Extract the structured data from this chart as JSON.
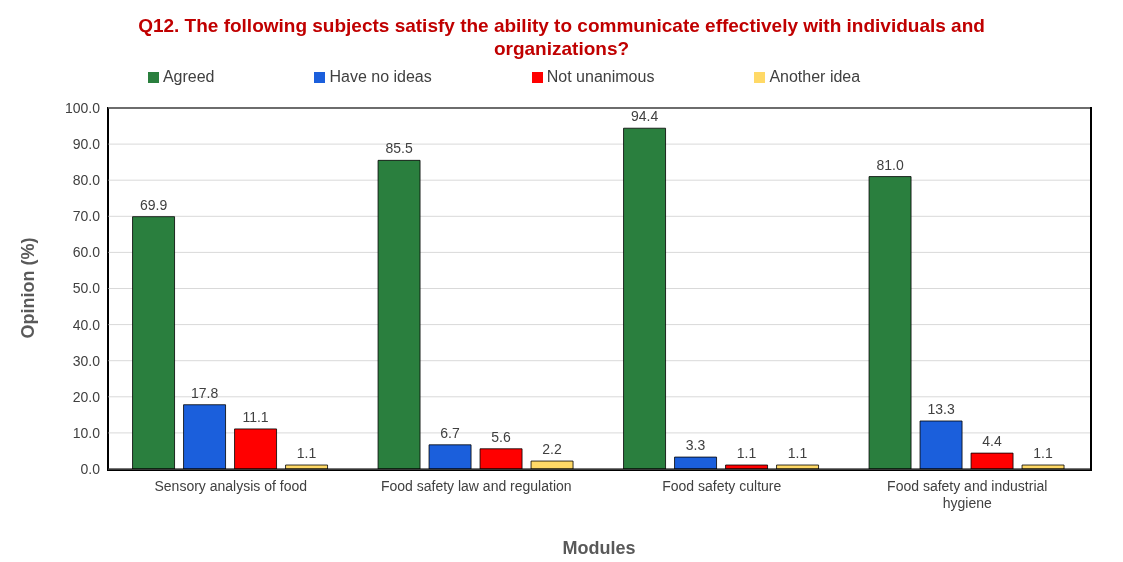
{
  "chart_data": {
    "type": "bar",
    "title": "Q12. The following subjects satisfy the ability to communicate effectively with individuals and organizations?",
    "xlabel": "Modules",
    "ylabel": "Opinion (%)",
    "categories": [
      "Sensory analysis of food",
      "Food safety law and regulation",
      "Food safety culture",
      "Food safety and industrial hygiene"
    ],
    "series": [
      {
        "name": "Agreed",
        "color": "#2a7f3e",
        "values": [
          69.9,
          85.5,
          94.4,
          81.0
        ],
        "value_labels": [
          "69.9",
          "85.5",
          "94.4",
          "81.0"
        ]
      },
      {
        "name": "Have no ideas",
        "color": "#1b5fdc",
        "values": [
          17.8,
          6.7,
          3.3,
          13.3
        ],
        "value_labels": [
          "17.8",
          "6.7",
          "3.3",
          "13.3"
        ]
      },
      {
        "name": "Not unanimous",
        "color": "#ff0000",
        "values": [
          11.1,
          5.6,
          1.1,
          4.4
        ],
        "value_labels": [
          "11.1",
          "5.6",
          "1.1",
          "4.4"
        ]
      },
      {
        "name": "Another idea",
        "color": "#ffd966",
        "values": [
          1.1,
          2.2,
          1.1,
          1.1
        ],
        "value_labels": [
          "1.1",
          "2.2",
          "1.1",
          "1.1"
        ]
      }
    ],
    "ylim": [
      0,
      100
    ],
    "yticks": [
      {
        "value": 0,
        "label": "0.0"
      },
      {
        "value": 10,
        "label": "10.0"
      },
      {
        "value": 20,
        "label": "20.0"
      },
      {
        "value": 30,
        "label": "30.0"
      },
      {
        "value": 40,
        "label": "40.0"
      },
      {
        "value": 50,
        "label": "50.0"
      },
      {
        "value": 60,
        "label": "60.0"
      },
      {
        "value": 70,
        "label": "70.0"
      },
      {
        "value": 80,
        "label": "80.0"
      },
      {
        "value": 90,
        "label": "90.0"
      },
      {
        "value": 100,
        "label": "100.0"
      }
    ],
    "grid": "y",
    "legend": "top"
  }
}
